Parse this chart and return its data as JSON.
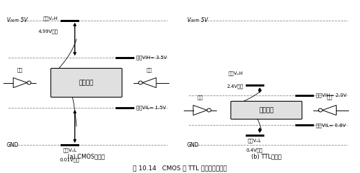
{
  "fig_width": 5.23,
  "fig_height": 2.52,
  "dpi": 100,
  "title": "图 10.14   CMOS 与 TTL 噪声余量的比较",
  "cmos": {
    "vdd": 5.0,
    "gnd": 0.0,
    "voh_min": 4.99,
    "vil_max": 1.5,
    "vol_max": 0.01,
    "vih_min": 3.5,
    "label_vdd": "V₀₀= 5V",
    "label_voh_line1": "输出VₒH",
    "label_voh_line2": "4.99V以上",
    "label_vil": "输入VIL= 1.5V",
    "label_vol_line1": "输出VₒL",
    "label_vol_line2": "0.01V以下",
    "label_vih": "输入VIH= 3.5V",
    "label_noise": "噪声余量",
    "label_out": "输出",
    "label_in": "输入",
    "subtitle": "(a) CMOS的场合"
  },
  "ttl": {
    "vdd": 5.0,
    "gnd": 0.0,
    "voh_min": 2.4,
    "vil_max": 0.8,
    "vol_max": 0.4,
    "vih_min": 2.0,
    "label_vdd": "V₀₀= 5V",
    "label_voh_line1": "输出VₒH",
    "label_voh_line2": "2.4V以上",
    "label_vil": "输入VIL= 0.8V",
    "label_vol_line1": "输出VₒL",
    "label_vol_line2": "0.4V以下",
    "label_vih": "输入VIH= 2.0V",
    "label_noise": "噪声余量",
    "label_out": "输出",
    "label_in": "输入",
    "subtitle": "(b) TTL的场合"
  }
}
